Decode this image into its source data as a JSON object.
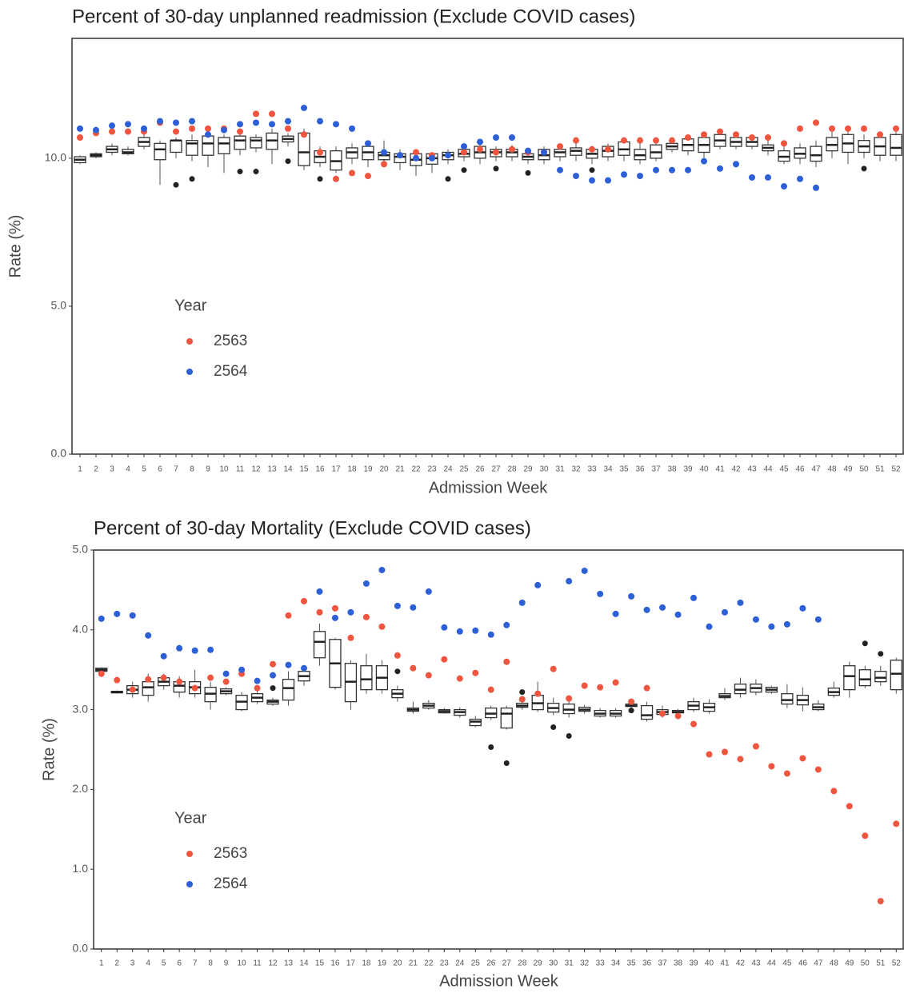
{
  "chart_data": [
    {
      "type": "box",
      "title": "Percent of 30-day unplanned readmission (Exclude COVID cases)",
      "x_label": "Admission Week",
      "y_label": "Rate (%)",
      "categories": [
        1,
        2,
        3,
        4,
        5,
        6,
        7,
        8,
        9,
        10,
        11,
        12,
        13,
        14,
        15,
        16,
        17,
        18,
        19,
        20,
        21,
        22,
        23,
        24,
        25,
        26,
        27,
        28,
        29,
        30,
        31,
        32,
        33,
        34,
        35,
        36,
        37,
        38,
        39,
        40,
        41,
        42,
        43,
        44,
        45,
        46,
        47,
        48,
        49,
        50,
        51,
        52
      ],
      "boxes": {
        "low": [
          9.8,
          10.0,
          10.1,
          10.1,
          10.3,
          9.1,
          10.0,
          9.9,
          9.7,
          9.5,
          10.1,
          10.2,
          9.8,
          10.4,
          9.6,
          9.7,
          9.5,
          9.8,
          9.7,
          9.8,
          9.6,
          9.4,
          9.5,
          9.8,
          9.9,
          9.8,
          9.9,
          9.9,
          9.8,
          9.8,
          9.9,
          9.9,
          9.8,
          9.9,
          9.9,
          9.8,
          9.9,
          10.2,
          10.1,
          10.0,
          10.3,
          10.3,
          10.3,
          10.1,
          9.8,
          9.8,
          9.7,
          10.0,
          9.8,
          10.0,
          9.9,
          9.9
        ],
        "q1": [
          9.85,
          10.05,
          10.2,
          10.15,
          10.4,
          9.95,
          10.2,
          10.1,
          10.1,
          10.15,
          10.3,
          10.35,
          10.3,
          10.55,
          9.75,
          9.85,
          9.6,
          10.0,
          9.95,
          9.95,
          9.85,
          9.75,
          9.8,
          9.95,
          10.05,
          10.0,
          10.05,
          10.05,
          9.95,
          9.95,
          10.05,
          10.1,
          10.0,
          10.05,
          10.1,
          9.95,
          10.0,
          10.3,
          10.25,
          10.2,
          10.4,
          10.4,
          10.4,
          10.25,
          9.9,
          10.0,
          9.9,
          10.25,
          10.2,
          10.2,
          10.1,
          10.1
        ],
        "median": [
          9.95,
          10.1,
          10.3,
          10.2,
          10.55,
          10.3,
          10.6,
          10.5,
          10.5,
          10.5,
          10.6,
          10.6,
          10.6,
          10.65,
          10.2,
          10.05,
          9.9,
          10.2,
          10.2,
          10.1,
          10.05,
          9.95,
          10.0,
          10.1,
          10.15,
          10.2,
          10.2,
          10.2,
          10.05,
          10.1,
          10.2,
          10.25,
          10.15,
          10.25,
          10.3,
          10.1,
          10.2,
          10.4,
          10.45,
          10.45,
          10.6,
          10.55,
          10.55,
          10.35,
          10.05,
          10.15,
          10.1,
          10.45,
          10.5,
          10.4,
          10.4,
          10.35
        ],
        "q3": [
          10.05,
          10.15,
          10.4,
          10.3,
          10.7,
          10.5,
          10.6,
          10.6,
          10.75,
          10.7,
          10.75,
          10.7,
          10.85,
          10.75,
          10.85,
          10.25,
          10.25,
          10.35,
          10.4,
          10.2,
          10.15,
          10.15,
          10.15,
          10.2,
          10.3,
          10.4,
          10.3,
          10.3,
          10.15,
          10.3,
          10.3,
          10.35,
          10.3,
          10.4,
          10.55,
          10.3,
          10.45,
          10.5,
          10.65,
          10.7,
          10.8,
          10.7,
          10.7,
          10.45,
          10.25,
          10.35,
          10.4,
          10.7,
          10.8,
          10.6,
          10.7,
          10.8
        ],
        "high": [
          10.1,
          10.2,
          10.5,
          10.4,
          10.8,
          10.6,
          10.7,
          10.8,
          10.9,
          10.8,
          10.9,
          10.8,
          11.0,
          10.85,
          11.0,
          10.4,
          10.4,
          10.5,
          10.6,
          10.6,
          10.3,
          10.3,
          10.2,
          10.3,
          10.45,
          10.5,
          10.4,
          10.45,
          10.3,
          10.4,
          10.45,
          10.5,
          10.4,
          10.5,
          10.7,
          10.5,
          10.6,
          10.6,
          10.8,
          10.9,
          10.9,
          10.8,
          10.8,
          10.6,
          10.4,
          10.5,
          10.6,
          10.9,
          10.9,
          10.8,
          10.9,
          10.9
        ]
      },
      "outliers": {
        "color": "#222222",
        "x": [
          7,
          8,
          11,
          12,
          14,
          16,
          24,
          25,
          27,
          29,
          33,
          50
        ],
        "values": [
          9.1,
          9.3,
          9.55,
          9.55,
          9.9,
          9.3,
          9.3,
          9.6,
          9.65,
          9.5,
          9.6,
          9.65
        ]
      },
      "legend_title": "Year",
      "series": [
        {
          "name": "2563",
          "color": "#f0553f",
          "values": [
            10.7,
            10.85,
            10.9,
            10.9,
            10.9,
            11.2,
            10.9,
            11.0,
            11.0,
            11.0,
            10.9,
            11.5,
            11.5,
            11.0,
            10.8,
            10.2,
            9.3,
            9.5,
            9.4,
            9.8,
            10.1,
            10.2,
            10.1,
            10.1,
            10.2,
            10.3,
            10.2,
            10.3,
            10.2,
            10.2,
            10.4,
            10.6,
            10.3,
            10.3,
            10.6,
            10.6,
            10.6,
            10.6,
            10.7,
            10.8,
            10.9,
            10.8,
            10.7,
            10.7,
            10.5,
            11.0,
            11.2,
            11.0,
            11.0,
            11.0,
            10.8,
            11.0
          ]
        },
        {
          "name": "2564",
          "color": "#2d5fd6",
          "values": [
            11.0,
            10.95,
            11.1,
            11.15,
            11.0,
            11.25,
            11.2,
            11.25,
            10.8,
            10.95,
            11.15,
            11.2,
            11.15,
            11.25,
            11.7,
            11.25,
            11.15,
            11.0,
            10.5,
            10.2,
            10.1,
            10.0,
            10.0,
            10.1,
            10.4,
            10.55,
            10.7,
            10.7,
            10.25,
            10.2,
            9.6,
            9.4,
            9.25,
            9.25,
            9.45,
            9.4,
            9.6,
            9.6,
            9.6,
            9.9,
            9.65,
            9.8,
            9.35,
            9.35,
            9.05,
            9.3,
            9.0,
            null,
            null,
            null,
            null,
            null
          ]
        }
      ],
      "ylim": [
        0,
        14.05
      ],
      "yticks": [
        {
          "value": 0,
          "label": "0.0"
        },
        {
          "value": 5,
          "label": "5.0"
        },
        {
          "value": 10,
          "label": "10.0"
        }
      ]
    },
    {
      "type": "box",
      "title": "Percent of 30-day Mortality (Exclude COVID cases)",
      "x_label": "Admission Week",
      "y_label": "Rate (%)",
      "categories": [
        1,
        2,
        3,
        4,
        5,
        6,
        7,
        8,
        9,
        10,
        11,
        12,
        13,
        14,
        15,
        16,
        17,
        18,
        19,
        20,
        21,
        22,
        23,
        24,
        25,
        26,
        27,
        28,
        29,
        30,
        31,
        32,
        33,
        34,
        35,
        36,
        37,
        38,
        39,
        40,
        41,
        42,
        43,
        44,
        45,
        46,
        47,
        48,
        49,
        50,
        51,
        52
      ],
      "boxes": {
        "low": [
          3.47,
          3.2,
          3.15,
          3.1,
          3.25,
          3.15,
          3.15,
          3.0,
          3.18,
          2.98,
          3.07,
          3.05,
          3.05,
          3.3,
          3.55,
          3.25,
          3.0,
          3.2,
          3.2,
          3.1,
          2.95,
          3.0,
          2.95,
          2.9,
          2.78,
          2.87,
          2.75,
          3.0,
          2.97,
          2.93,
          2.9,
          2.95,
          2.9,
          2.9,
          3.02,
          2.85,
          2.9,
          2.95,
          2.97,
          2.95,
          3.12,
          3.15,
          3.18,
          3.2,
          3.02,
          2.98,
          2.98,
          3.15,
          3.15,
          3.27,
          3.3,
          3.2
        ],
        "q1": [
          3.48,
          3.21,
          3.2,
          3.18,
          3.3,
          3.22,
          3.2,
          3.1,
          3.2,
          3.0,
          3.1,
          3.07,
          3.12,
          3.36,
          3.65,
          3.28,
          3.1,
          3.25,
          3.25,
          3.15,
          2.98,
          3.02,
          2.96,
          2.93,
          2.8,
          2.9,
          2.77,
          3.03,
          3.0,
          2.97,
          2.95,
          2.98,
          2.92,
          2.92,
          3.04,
          2.88,
          2.94,
          2.96,
          3.0,
          2.98,
          3.15,
          3.2,
          3.22,
          3.22,
          3.07,
          3.06,
          3.0,
          3.18,
          3.25,
          3.3,
          3.35,
          3.25
        ],
        "median": [
          3.5,
          3.22,
          3.25,
          3.28,
          3.35,
          3.3,
          3.28,
          3.2,
          3.23,
          3.1,
          3.15,
          3.1,
          3.27,
          3.42,
          3.85,
          3.58,
          3.35,
          3.38,
          3.4,
          3.2,
          3.0,
          3.05,
          2.98,
          2.97,
          2.85,
          2.95,
          2.95,
          3.05,
          3.08,
          3.02,
          3.0,
          3.0,
          2.95,
          2.95,
          3.05,
          2.93,
          2.97,
          2.97,
          3.05,
          3.03,
          3.17,
          3.25,
          3.27,
          3.25,
          3.12,
          3.12,
          3.03,
          3.22,
          3.42,
          3.38,
          3.4,
          3.45
        ],
        "q3": [
          3.52,
          3.23,
          3.3,
          3.35,
          3.4,
          3.35,
          3.35,
          3.28,
          3.26,
          3.18,
          3.2,
          3.12,
          3.38,
          3.48,
          3.98,
          3.88,
          3.58,
          3.55,
          3.55,
          3.25,
          3.02,
          3.08,
          3.0,
          3.0,
          2.88,
          3.02,
          3.02,
          3.08,
          3.18,
          3.08,
          3.07,
          3.03,
          2.99,
          2.99,
          3.07,
          3.05,
          3.0,
          2.99,
          3.1,
          3.08,
          3.2,
          3.32,
          3.32,
          3.28,
          3.2,
          3.18,
          3.07,
          3.27,
          3.55,
          3.5,
          3.48,
          3.62
        ],
        "high": [
          3.53,
          3.24,
          3.35,
          3.45,
          3.45,
          3.42,
          3.5,
          3.35,
          3.28,
          3.22,
          3.25,
          3.15,
          3.48,
          3.55,
          4.08,
          3.9,
          3.62,
          3.7,
          3.62,
          3.3,
          3.1,
          3.12,
          3.02,
          3.03,
          2.92,
          3.05,
          3.05,
          3.12,
          3.35,
          3.15,
          3.15,
          3.06,
          3.02,
          3.02,
          3.09,
          3.1,
          3.05,
          3.01,
          3.15,
          3.13,
          3.27,
          3.4,
          3.38,
          3.3,
          3.32,
          3.28,
          3.12,
          3.35,
          3.6,
          3.55,
          3.55,
          3.65
        ]
      },
      "outliers": {
        "color": "#222222",
        "x": [
          12,
          20,
          26,
          27,
          28,
          30,
          31,
          35,
          50,
          51
        ],
        "values": [
          3.27,
          3.48,
          2.53,
          2.33,
          3.22,
          2.78,
          2.67,
          2.99,
          3.83,
          3.7
        ]
      },
      "legend_title": "Year",
      "series": [
        {
          "name": "2563",
          "color": "#f0553f",
          "values": [
            3.45,
            3.37,
            3.25,
            3.38,
            3.4,
            3.35,
            3.27,
            3.4,
            3.35,
            3.45,
            3.27,
            3.57,
            4.18,
            4.36,
            4.22,
            4.27,
            3.9,
            4.16,
            4.04,
            3.68,
            3.52,
            3.43,
            3.63,
            3.39,
            3.46,
            3.25,
            3.6,
            3.13,
            3.2,
            3.51,
            3.14,
            3.3,
            3.28,
            3.34,
            3.1,
            3.27,
            2.95,
            2.92,
            2.82,
            2.44,
            2.47,
            2.38,
            2.54,
            2.29,
            2.2,
            2.39,
            2.25,
            1.98,
            1.79,
            1.42,
            0.6,
            1.57
          ]
        },
        {
          "name": "2564",
          "color": "#2d5fd6",
          "values": [
            4.14,
            4.2,
            4.18,
            3.93,
            3.67,
            3.77,
            3.74,
            3.75,
            3.45,
            3.5,
            3.36,
            3.43,
            3.56,
            3.52,
            4.48,
            4.15,
            4.22,
            4.58,
            4.75,
            4.3,
            4.28,
            4.48,
            4.03,
            3.98,
            3.99,
            3.94,
            4.06,
            4.34,
            4.56,
            null,
            4.61,
            4.74,
            4.45,
            4.2,
            4.42,
            4.25,
            4.28,
            4.19,
            4.4,
            4.04,
            4.22,
            4.34,
            4.13,
            4.04,
            4.07,
            4.27,
            4.13,
            null,
            null,
            null,
            null,
            null
          ]
        }
      ],
      "ylim": [
        0,
        5
      ],
      "yticks": [
        {
          "value": 0,
          "label": "0.0"
        },
        {
          "value": 1,
          "label": "1.0"
        },
        {
          "value": 2,
          "label": "2.0"
        },
        {
          "value": 3,
          "label": "3.0"
        },
        {
          "value": 4,
          "label": "4.0"
        },
        {
          "value": 5,
          "label": "5.0"
        }
      ]
    }
  ]
}
